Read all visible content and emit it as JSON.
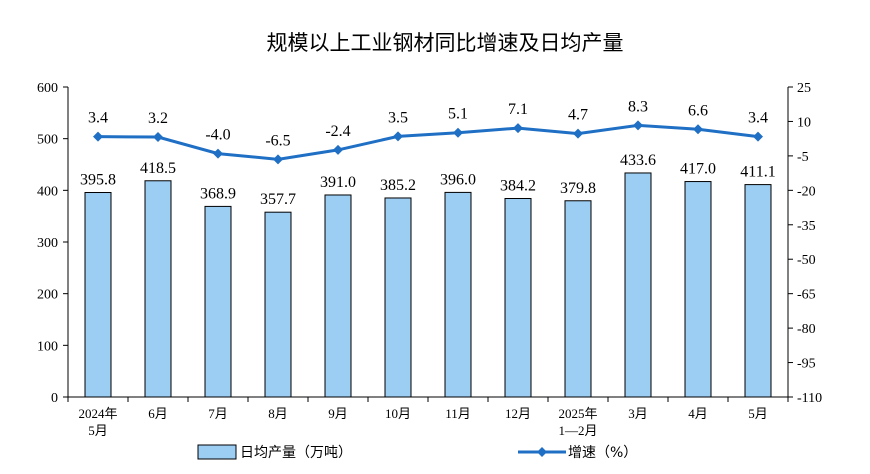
{
  "chart_data": {
    "type": "bar",
    "title": "规模以上工业钢材同比增速及日均产量",
    "categories": [
      "2024年\n5月",
      "6月",
      "7月",
      "8月",
      "9月",
      "10月",
      "11月",
      "12月",
      "2025年\n1—2月",
      "3月",
      "4月",
      "5月"
    ],
    "series": [
      {
        "name": "日均产量（万吨）",
        "type": "bar",
        "axis": "left",
        "values": [
          395.8,
          418.5,
          368.9,
          357.7,
          391.0,
          385.2,
          396.0,
          384.2,
          379.8,
          433.6,
          417.0,
          411.1
        ],
        "labels": [
          "395.8",
          "418.5",
          "368.9",
          "357.7",
          "391.0",
          "385.2",
          "396.0",
          "384.2",
          "379.8",
          "433.6",
          "417.0",
          "411.1"
        ]
      },
      {
        "name": "增速（%）",
        "type": "line",
        "axis": "right",
        "values": [
          3.4,
          3.2,
          -4.0,
          -6.5,
          -2.4,
          3.5,
          5.1,
          7.1,
          4.7,
          8.3,
          6.6,
          3.4
        ],
        "labels": [
          "3.4",
          "3.2",
          "-4.0",
          "-6.5",
          "-2.4",
          "3.5",
          "5.1",
          "7.1",
          "4.7",
          "8.3",
          "6.6",
          "3.4"
        ]
      }
    ],
    "y_left": {
      "range": [
        0,
        600
      ],
      "ticks": [
        0,
        100,
        200,
        300,
        400,
        500,
        600
      ]
    },
    "y_right": {
      "range": [
        -110,
        25
      ],
      "ticks": [
        -110,
        -95,
        -80,
        -65,
        -50,
        -35,
        -20,
        -5,
        10,
        25
      ]
    },
    "grid": false,
    "legend_position": "bottom",
    "colors": {
      "bar_fill": "#9ccdf2",
      "bar_stroke": "#000000",
      "line": "#1f6fc5",
      "axis": "#000000"
    }
  }
}
